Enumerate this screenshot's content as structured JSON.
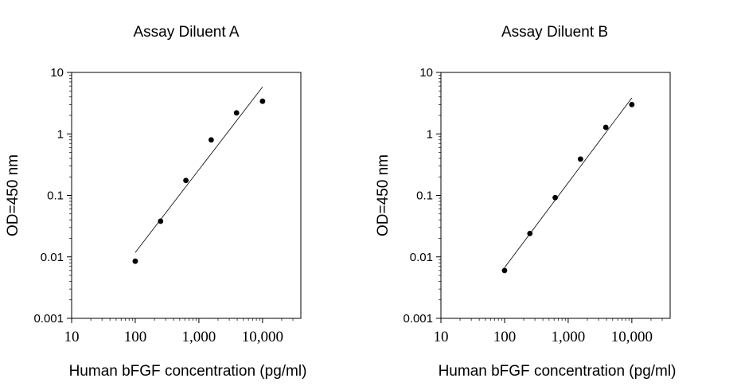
{
  "chart_data": [
    {
      "type": "scatter",
      "title": "Assay Diluent A",
      "xlabel": "Human bFGF concentration (pg/ml)",
      "ylabel": "OD=450 nm",
      "x_scale": "log",
      "y_scale": "log",
      "xlim": [
        10,
        40000
      ],
      "ylim": [
        0.001,
        10
      ],
      "x_ticks": [
        {
          "value": 10,
          "label": "10"
        },
        {
          "value": 100,
          "label": "100"
        },
        {
          "value": 1000,
          "label": "1,000"
        },
        {
          "value": 10000,
          "label": "10,000"
        }
      ],
      "y_ticks": [
        {
          "value": 10,
          "label": "10"
        },
        {
          "value": 1,
          "label": "1"
        },
        {
          "value": 0.1,
          "label": "0.1"
        },
        {
          "value": 0.01,
          "label": "0.01"
        },
        {
          "value": 0.001,
          "label": "0.001"
        }
      ],
      "grid": false,
      "points": [
        {
          "x": 100,
          "y": 0.0085
        },
        {
          "x": 250,
          "y": 0.038
        },
        {
          "x": 625,
          "y": 0.175
        },
        {
          "x": 1560,
          "y": 0.8
        },
        {
          "x": 3900,
          "y": 2.2
        },
        {
          "x": 10000,
          "y": 3.4
        }
      ],
      "fit_line": [
        {
          "x": 100,
          "y": 0.0118
        },
        {
          "x": 10000,
          "y": 5.8
        }
      ]
    },
    {
      "type": "scatter",
      "title": "Assay Diluent B",
      "xlabel": "Human bFGF concentration (pg/ml)",
      "ylabel": "OD=450 nm",
      "x_scale": "log",
      "y_scale": "log",
      "xlim": [
        10,
        40000
      ],
      "ylim": [
        0.001,
        10
      ],
      "x_ticks": [
        {
          "value": 10,
          "label": "10"
        },
        {
          "value": 100,
          "label": "100"
        },
        {
          "value": 1000,
          "label": "1,000"
        },
        {
          "value": 10000,
          "label": "10,000"
        }
      ],
      "y_ticks": [
        {
          "value": 10,
          "label": "10"
        },
        {
          "value": 1,
          "label": "1"
        },
        {
          "value": 0.1,
          "label": "0.1"
        },
        {
          "value": 0.01,
          "label": "0.01"
        },
        {
          "value": 0.001,
          "label": "0.001"
        }
      ],
      "grid": false,
      "points": [
        {
          "x": 100,
          "y": 0.006
        },
        {
          "x": 250,
          "y": 0.024
        },
        {
          "x": 625,
          "y": 0.092
        },
        {
          "x": 1560,
          "y": 0.39
        },
        {
          "x": 3900,
          "y": 1.28
        },
        {
          "x": 10000,
          "y": 3.0
        }
      ],
      "fit_line": [
        {
          "x": 100,
          "y": 0.0067
        },
        {
          "x": 10000,
          "y": 3.85
        }
      ]
    }
  ]
}
